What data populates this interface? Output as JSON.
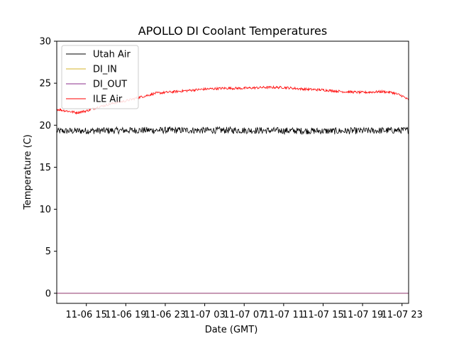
{
  "chart_data": {
    "type": "line",
    "title": "APOLLO DI Coolant Temperatures",
    "xlabel": "Date (GMT)",
    "ylabel": "Temperature (C)",
    "ylim": [
      -1.2,
      30
    ],
    "xlim": [
      "11-06 12:00",
      "11-07 23:40"
    ],
    "yticks": [
      0,
      5,
      10,
      15,
      20,
      25,
      30
    ],
    "xticks": [
      {
        "label": "11-06 15",
        "at": "11-06 15:00"
      },
      {
        "label": "11-06 19",
        "at": "11-06 19:00"
      },
      {
        "label": "11-06 23",
        "at": "11-06 23:00"
      },
      {
        "label": "11-07 03",
        "at": "11-07 03:00"
      },
      {
        "label": "11-07 07",
        "at": "11-07 07:00"
      },
      {
        "label": "11-07 11",
        "at": "11-07 11:00"
      },
      {
        "label": "11-07 15",
        "at": "11-07 15:00"
      },
      {
        "label": "11-07 19",
        "at": "11-07 19:00"
      },
      {
        "label": "11-07 23",
        "at": "11-07 23:00"
      }
    ],
    "legend_position": "upper-left",
    "grid": false,
    "series": [
      {
        "name": "Utah Air",
        "color": "#000000",
        "noise": 0.4,
        "points": [
          [
            "11-06 12:00",
            19.3
          ],
          [
            "11-06 20:00",
            19.4
          ],
          [
            "11-07 06:00",
            19.4
          ],
          [
            "11-07 16:00",
            19.3
          ],
          [
            "11-07 23:40",
            19.4
          ]
        ]
      },
      {
        "name": "DI_IN",
        "color": "#d4b32a",
        "noise": 0,
        "points": [
          [
            "11-06 12:00",
            0
          ],
          [
            "11-07 23:40",
            0
          ]
        ]
      },
      {
        "name": "DI_OUT",
        "color": "#8b2c8b",
        "noise": 0,
        "points": [
          [
            "11-06 12:00",
            0
          ],
          [
            "11-07 23:40",
            0
          ]
        ]
      },
      {
        "name": "ILE Air",
        "color": "#ff0000",
        "noise": 0.15,
        "points": [
          [
            "11-06 12:00",
            21.9
          ],
          [
            "11-06 13:00",
            21.7
          ],
          [
            "11-06 14:00",
            21.5
          ],
          [
            "11-06 15:00",
            21.7
          ],
          [
            "11-06 16:00",
            22.1
          ],
          [
            "11-06 17:00",
            22.4
          ],
          [
            "11-06 18:00",
            22.7
          ],
          [
            "11-06 19:00",
            22.9
          ],
          [
            "11-06 20:00",
            23.2
          ],
          [
            "11-06 21:00",
            23.5
          ],
          [
            "11-06 22:00",
            23.8
          ],
          [
            "11-06 23:00",
            23.9
          ],
          [
            "11-07 01:00",
            24.1
          ],
          [
            "11-07 03:00",
            24.3
          ],
          [
            "11-07 05:00",
            24.4
          ],
          [
            "11-07 07:00",
            24.4
          ],
          [
            "11-07 09:00",
            24.5
          ],
          [
            "11-07 11:00",
            24.5
          ],
          [
            "11-07 13:00",
            24.3
          ],
          [
            "11-07 15:00",
            24.2
          ],
          [
            "11-07 17:00",
            24.0
          ],
          [
            "11-07 19:00",
            23.9
          ],
          [
            "11-07 21:00",
            24.0
          ],
          [
            "11-07 22:00",
            23.9
          ],
          [
            "11-07 23:00",
            23.5
          ],
          [
            "11-07 23:40",
            23.0
          ]
        ]
      }
    ]
  }
}
